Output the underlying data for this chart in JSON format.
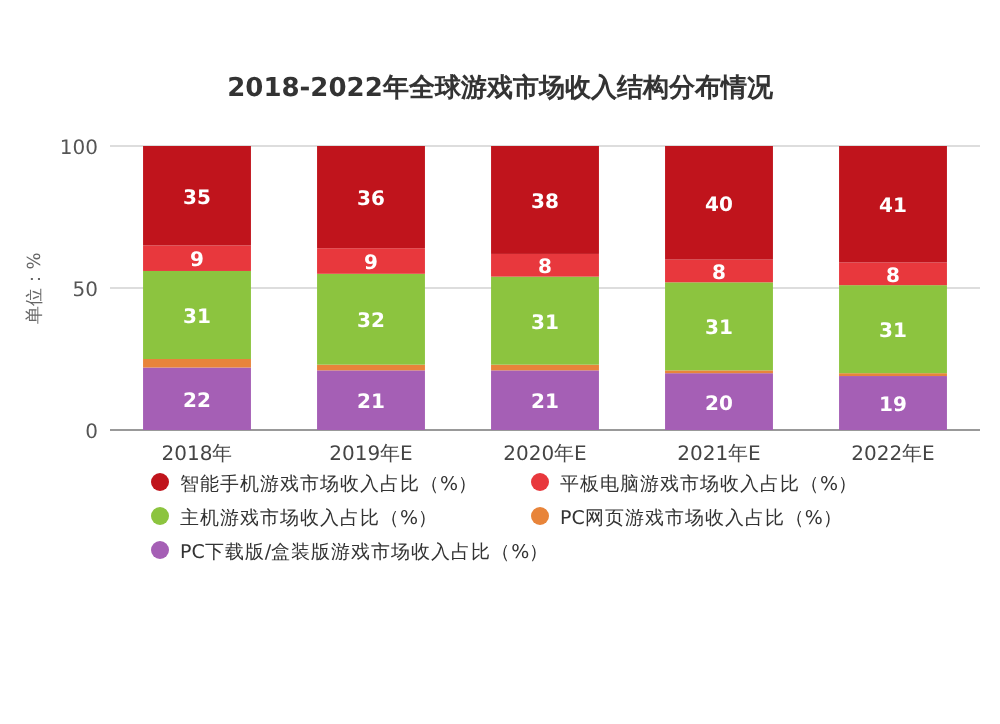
{
  "chart_data": {
    "type": "bar",
    "stacked": true,
    "title": "2018-2022年全球游戏市场收入结构分布情况",
    "ylabel": "单位：%",
    "categories": [
      "2018年",
      "2019年E",
      "2020年E",
      "2021年E",
      "2022年E"
    ],
    "series": [
      {
        "name": "PC下载版/盒装版游戏市场收入占比（%）",
        "color": "#a55fb5",
        "values": [
          22,
          21,
          21,
          20,
          19
        ],
        "value_labels": [
          "22",
          "21",
          "21",
          "20",
          "19"
        ]
      },
      {
        "name": "PC网页游戏市场收入占比（%）",
        "color": "#e8843a",
        "values": [
          3,
          2,
          2,
          1,
          1
        ]
      },
      {
        "name": "主机游戏市场收入占比（%）",
        "color": "#8cc43f",
        "values": [
          31,
          32,
          31,
          31,
          31
        ],
        "value_labels": [
          "31",
          "32",
          "31",
          "31",
          "31"
        ]
      },
      {
        "name": "平板电脑游戏市场收入占比（%）",
        "color": "#e8383d",
        "values": [
          9,
          9,
          8,
          8,
          8
        ],
        "value_labels": [
          "9",
          "9",
          "8",
          "8",
          "8"
        ]
      },
      {
        "name": "智能手机游戏市场收入占比（%）",
        "color": "#c0141c",
        "values": [
          35,
          36,
          38,
          40,
          41
        ],
        "value_labels": [
          "35",
          "36",
          "38",
          "40",
          "41"
        ]
      }
    ],
    "ylim": [
      0,
      100
    ],
    "yticks": [
      0,
      50,
      100
    ],
    "grid": "y",
    "legend": "bottom"
  }
}
